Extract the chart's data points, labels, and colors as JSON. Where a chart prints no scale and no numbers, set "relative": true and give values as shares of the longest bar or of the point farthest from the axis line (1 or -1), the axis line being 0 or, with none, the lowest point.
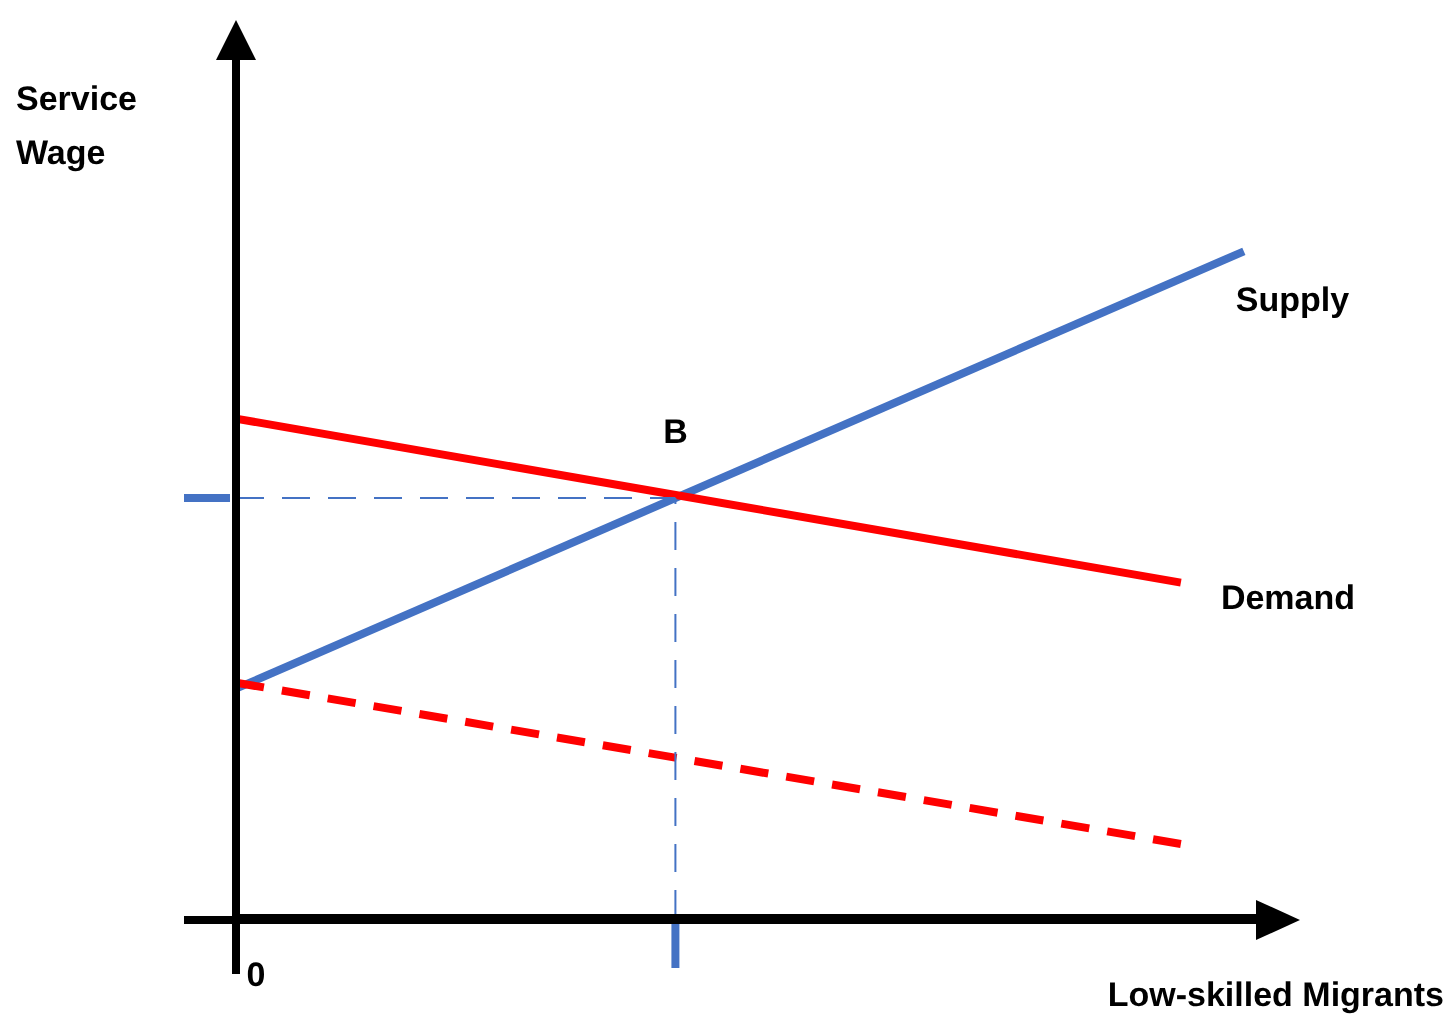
{
  "chart_data": {
    "type": "line",
    "relative": true,
    "ylabel": "Service Wage",
    "xlabel": "Low-skilled Migrants",
    "categories": [
      null,
      null,
      null,
      null,
      null,
      null,
      null,
      null,
      null,
      null,
      null,
      null,
      null,
      null,
      null,
      null,
      null
    ],
    "series": [
      {
        "name": "Supply",
        "color": "#4472c4",
        "values": [
          0.344,
          null,
          null,
          null,
          null,
          null,
          null,
          null,
          null,
          null,
          null,
          null,
          null,
          null,
          null,
          null,
          1
        ]
      },
      {
        "name": "Demand",
        "color": "#ff0000",
        "values": [
          0.749,
          null,
          null,
          null,
          null,
          null,
          null,
          null,
          null,
          null,
          null,
          null,
          null,
          null,
          null,
          0.503,
          null
        ]
      },
      {
        "color": "#ff0000",
        "values": [
          0.353,
          null,
          null,
          null,
          null,
          null,
          null,
          null,
          null,
          null,
          null,
          null,
          null,
          null,
          null,
          0.111,
          null
        ],
        "line_style": "dashed"
      }
    ],
    "ref_lines": [
      {
        "axis": "y",
        "value": 0.63,
        "color": "#4472c4",
        "line_style": "dashed"
      }
    ],
    "annotations": [
      {
        "text": "B",
        "y": 0.63
      },
      "0"
    ],
    "legend": false,
    "marker": "none"
  }
}
